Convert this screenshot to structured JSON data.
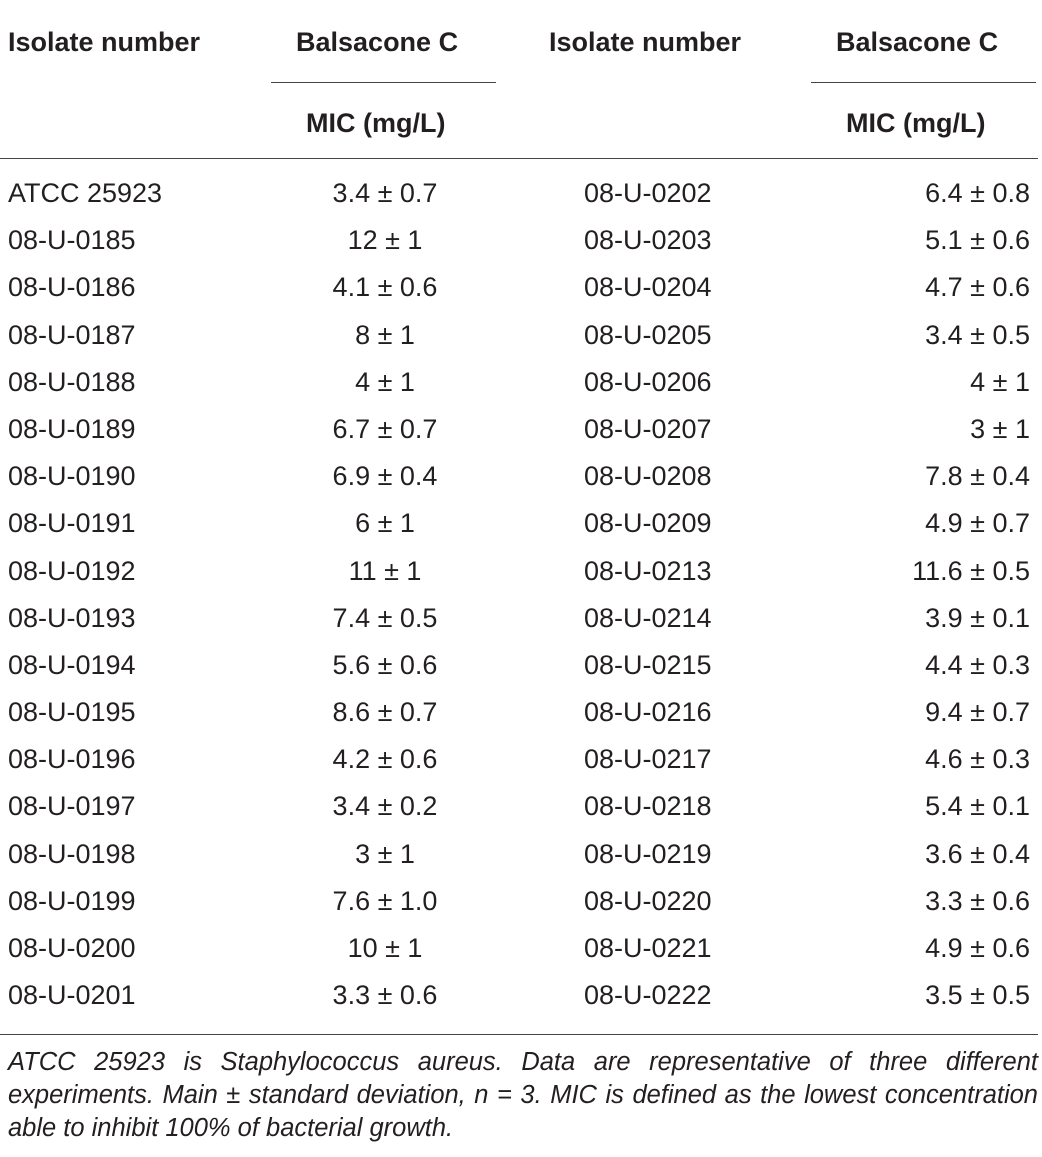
{
  "headers": {
    "isolate_1": "Isolate number",
    "balsacone_1": "Balsacone C",
    "mic_1": "MIC (mg/L)",
    "isolate_2": "Isolate number",
    "balsacone_2": "Balsacone C",
    "mic_2": "MIC (mg/L)"
  },
  "rows": [
    {
      "iso1": "ATCC 25923",
      "mic1": "3.4 ± 0.7",
      "iso2": "08-U-0202",
      "mic2": "6.4 ± 0.8"
    },
    {
      "iso1": "08-U-0185",
      "mic1": "12 ± 1",
      "iso2": "08-U-0203",
      "mic2": "5.1 ± 0.6"
    },
    {
      "iso1": "08-U-0186",
      "mic1": "4.1 ± 0.6",
      "iso2": "08-U-0204",
      "mic2": "4.7 ± 0.6"
    },
    {
      "iso1": "08-U-0187",
      "mic1": "8 ± 1",
      "iso2": "08-U-0205",
      "mic2": "3.4 ± 0.5"
    },
    {
      "iso1": "08-U-0188",
      "mic1": "4 ± 1",
      "iso2": "08-U-0206",
      "mic2": "4 ± 1"
    },
    {
      "iso1": "08-U-0189",
      "mic1": "6.7 ± 0.7",
      "iso2": "08-U-0207",
      "mic2": "3 ± 1"
    },
    {
      "iso1": "08-U-0190",
      "mic1": "6.9 ± 0.4",
      "iso2": "08-U-0208",
      "mic2": "7.8 ± 0.4"
    },
    {
      "iso1": "08-U-0191",
      "mic1": "6 ± 1",
      "iso2": "08-U-0209",
      "mic2": "4.9 ± 0.7"
    },
    {
      "iso1": "08-U-0192",
      "mic1": "11 ± 1",
      "iso2": "08-U-0213",
      "mic2": "11.6 ± 0.5"
    },
    {
      "iso1": "08-U-0193",
      "mic1": "7.4 ± 0.5",
      "iso2": "08-U-0214",
      "mic2": "3.9 ± 0.1"
    },
    {
      "iso1": "08-U-0194",
      "mic1": "5.6 ± 0.6",
      "iso2": "08-U-0215",
      "mic2": "4.4 ± 0.3"
    },
    {
      "iso1": "08-U-0195",
      "mic1": "8.6 ± 0.7",
      "iso2": "08-U-0216",
      "mic2": "9.4 ± 0.7"
    },
    {
      "iso1": "08-U-0196",
      "mic1": "4.2 ± 0.6",
      "iso2": "08-U-0217",
      "mic2": "4.6 ± 0.3"
    },
    {
      "iso1": "08-U-0197",
      "mic1": "3.4 ± 0.2",
      "iso2": "08-U-0218",
      "mic2": "5.4 ± 0.1"
    },
    {
      "iso1": "08-U-0198",
      "mic1": "3 ± 1",
      "iso2": "08-U-0219",
      "mic2": "3.6 ± 0.4"
    },
    {
      "iso1": "08-U-0199",
      "mic1": "7.6 ± 1.0",
      "iso2": "08-U-0220",
      "mic2": "3.3 ± 0.6"
    },
    {
      "iso1": "08-U-0200",
      "mic1": "10 ± 1",
      "iso2": "08-U-0221",
      "mic2": "4.9 ± 0.6"
    },
    {
      "iso1": "08-U-0201",
      "mic1": "3.3 ± 0.6",
      "iso2": "08-U-0222",
      "mic2": "3.5 ± 0.5"
    }
  ],
  "footnote": "ATCC 25923 is Staphylococcus aureus. Data are representative of three different experiments. Main ± standard deviation, n = 3. MIC is defined as the lowest concentration able to inhibit 100% of bacterial growth."
}
